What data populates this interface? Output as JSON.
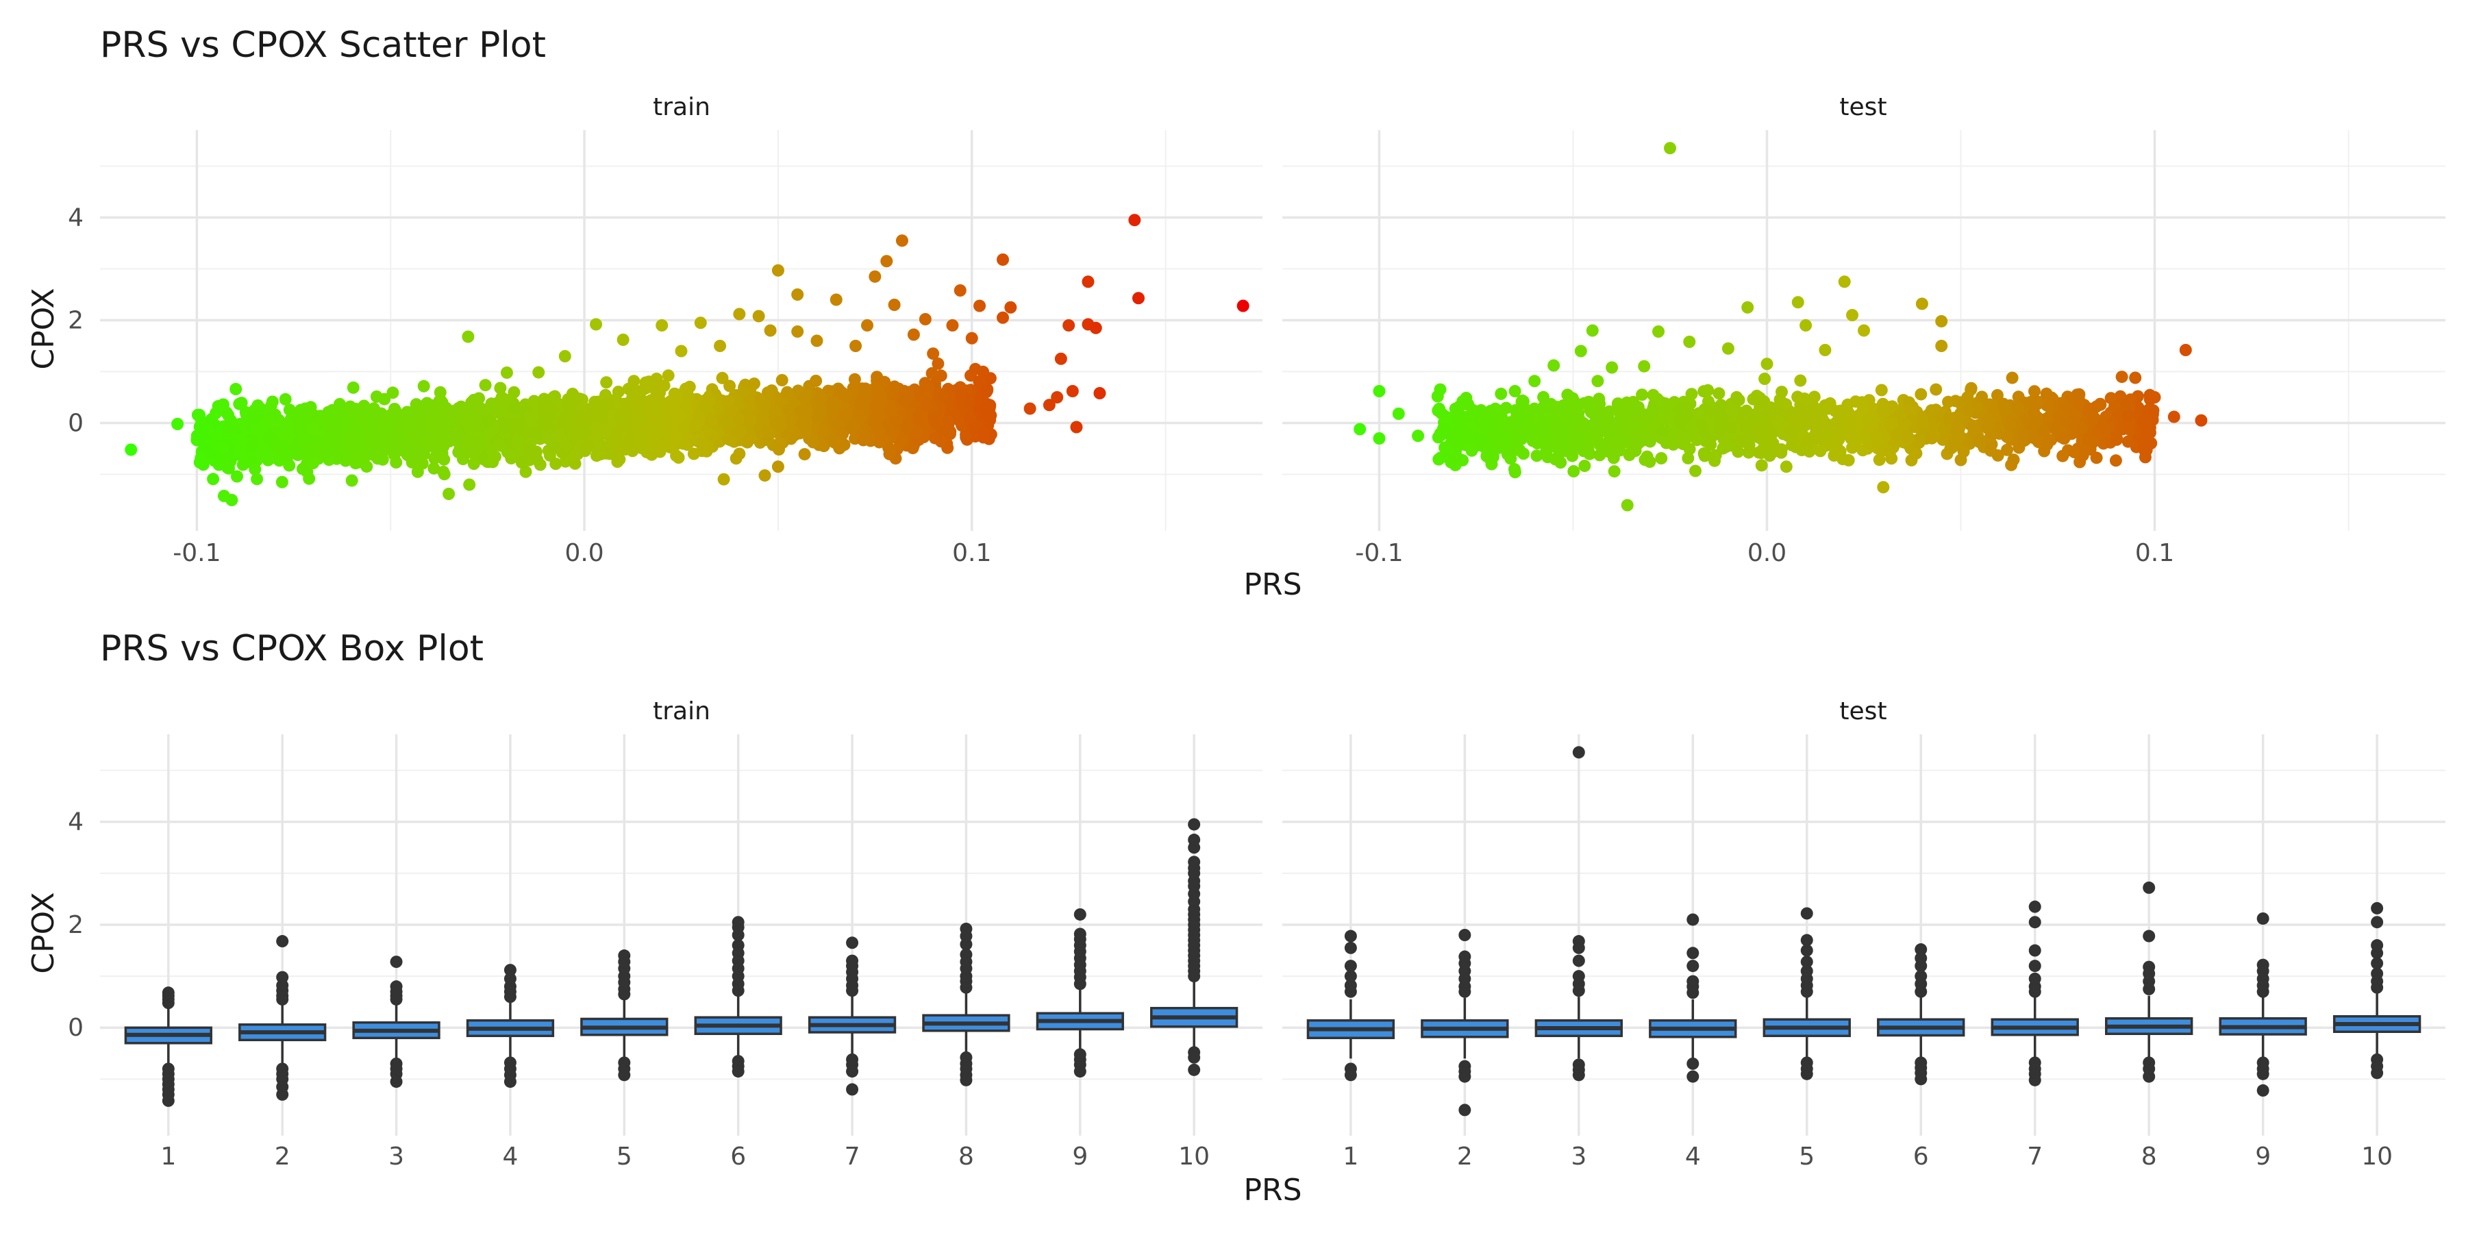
{
  "chart_data": [
    {
      "type": "scatter",
      "title": "PRS vs CPOX Scatter Plot",
      "xlabel": "PRS",
      "ylabel": "CPOX",
      "facets": [
        "train",
        "test"
      ],
      "xlim": [
        -0.125,
        0.175
      ],
      "ylim": [
        -2.1,
        5.7
      ],
      "x_ticks": [
        -0.1,
        0.0,
        0.1
      ],
      "x_tick_labels": [
        "-0.1",
        "0.0",
        "0.1"
      ],
      "y_ticks": [
        0,
        2,
        4
      ],
      "y_tick_labels": [
        "0",
        "2",
        "4"
      ],
      "grid": true,
      "legend": "none",
      "color_scale": {
        "low": "#33ff00",
        "mid": "#b8b800",
        "high": "#ee0000",
        "range": [
          -0.12,
          0.17
        ]
      },
      "series": [
        {
          "facet": "train",
          "bulk": {
            "x_range": [
              -0.1,
              0.105
            ],
            "intercept": -0.03,
            "slope": 3.0,
            "spread": 0.28,
            "n": 3000
          },
          "points": [
            [
              -0.117,
              -0.52
            ],
            [
              -0.105,
              -0.02
            ],
            [
              -0.1,
              -0.33
            ],
            [
              -0.093,
              -1.42
            ],
            [
              -0.091,
              -1.5
            ],
            [
              -0.085,
              -0.9
            ],
            [
              -0.078,
              -1.15
            ],
            [
              -0.075,
              -0.55
            ],
            [
              -0.07,
              -0.78
            ],
            [
              -0.06,
              -1.12
            ],
            [
              -0.043,
              -0.95
            ],
            [
              -0.035,
              -1.38
            ],
            [
              -0.03,
              1.68
            ],
            [
              -0.02,
              0.98
            ],
            [
              -0.005,
              1.3
            ],
            [
              0.003,
              1.92
            ],
            [
              0.01,
              1.62
            ],
            [
              0.02,
              1.9
            ],
            [
              0.025,
              1.4
            ],
            [
              0.03,
              1.95
            ],
            [
              0.035,
              1.5
            ],
            [
              0.04,
              2.12
            ],
            [
              0.04,
              -0.6
            ],
            [
              0.045,
              2.08
            ],
            [
              0.048,
              1.8
            ],
            [
              0.05,
              2.97
            ],
            [
              0.05,
              -0.85
            ],
            [
              0.055,
              1.78
            ],
            [
              0.055,
              2.5
            ],
            [
              0.06,
              1.6
            ],
            [
              0.065,
              2.4
            ],
            [
              0.07,
              1.5
            ],
            [
              0.073,
              1.9
            ],
            [
              0.075,
              2.85
            ],
            [
              0.078,
              3.15
            ],
            [
              0.08,
              2.3
            ],
            [
              0.082,
              3.55
            ],
            [
              0.085,
              1.72
            ],
            [
              0.088,
              2.02
            ],
            [
              0.09,
              1.35
            ],
            [
              0.095,
              1.9
            ],
            [
              0.097,
              2.58
            ],
            [
              0.1,
              1.65
            ],
            [
              0.102,
              2.28
            ],
            [
              0.103,
              -0.28
            ],
            [
              0.108,
              2.05
            ],
            [
              0.108,
              3.18
            ],
            [
              0.11,
              2.25
            ],
            [
              0.115,
              0.28
            ],
            [
              0.12,
              0.35
            ],
            [
              0.122,
              0.5
            ],
            [
              0.123,
              1.25
            ],
            [
              0.125,
              1.9
            ],
            [
              0.126,
              0.62
            ],
            [
              0.127,
              -0.08
            ],
            [
              0.13,
              2.75
            ],
            [
              0.13,
              1.92
            ],
            [
              0.132,
              1.85
            ],
            [
              0.133,
              0.58
            ],
            [
              0.142,
              3.95
            ],
            [
              0.143,
              2.43
            ],
            [
              0.17,
              2.28
            ]
          ]
        },
        {
          "facet": "test",
          "bulk": {
            "x_range": [
              -0.085,
              0.1
            ],
            "intercept": -0.06,
            "slope": 1.0,
            "spread": 0.3,
            "n": 1400
          },
          "points": [
            [
              -0.105,
              -0.12
            ],
            [
              -0.1,
              0.62
            ],
            [
              -0.1,
              -0.3
            ],
            [
              -0.095,
              0.18
            ],
            [
              -0.09,
              -0.25
            ],
            [
              -0.08,
              -0.45
            ],
            [
              -0.075,
              -0.3
            ],
            [
              -0.065,
              0.62
            ],
            [
              -0.055,
              1.12
            ],
            [
              -0.048,
              1.4
            ],
            [
              -0.045,
              1.8
            ],
            [
              -0.04,
              1.08
            ],
            [
              -0.036,
              -1.6
            ],
            [
              -0.028,
              1.78
            ],
            [
              -0.025,
              5.35
            ],
            [
              -0.02,
              1.58
            ],
            [
              -0.01,
              1.45
            ],
            [
              -0.005,
              2.25
            ],
            [
              0.0,
              1.15
            ],
            [
              0.005,
              -0.85
            ],
            [
              0.008,
              2.35
            ],
            [
              0.01,
              1.9
            ],
            [
              0.015,
              1.42
            ],
            [
              0.02,
              2.75
            ],
            [
              0.022,
              2.1
            ],
            [
              0.025,
              1.8
            ],
            [
              0.03,
              -1.25
            ],
            [
              0.04,
              2.32
            ],
            [
              0.045,
              1.5
            ],
            [
              0.045,
              1.98
            ],
            [
              0.05,
              -0.72
            ],
            [
              0.065,
              -0.48
            ],
            [
              0.08,
              0.55
            ],
            [
              0.085,
              0.32
            ],
            [
              0.095,
              0.88
            ],
            [
              0.1,
              0.5
            ],
            [
              0.105,
              0.12
            ],
            [
              0.108,
              1.42
            ],
            [
              0.112,
              0.05
            ]
          ]
        }
      ]
    },
    {
      "type": "box",
      "title": "PRS vs CPOX Box Plot",
      "xlabel": "PRS",
      "ylabel": "CPOX",
      "facets": [
        "train",
        "test"
      ],
      "categories": [
        "1",
        "2",
        "3",
        "4",
        "5",
        "6",
        "7",
        "8",
        "9",
        "10"
      ],
      "ylim": [
        -2.1,
        5.7
      ],
      "y_ticks": [
        0,
        2,
        4
      ],
      "y_tick_labels": [
        "0",
        "2",
        "4"
      ],
      "grid": true,
      "fill_color": "#3d8ee0",
      "series": [
        {
          "facet": "train",
          "boxes": [
            {
              "q1": -0.3,
              "median": -0.14,
              "q3": 0.0,
              "lo": -0.7,
              "hi": 0.42,
              "outliers": [
                0.48,
                0.55,
                0.62,
                0.68,
                -0.8,
                -0.9,
                -1.0,
                -1.1,
                -1.2,
                -1.3,
                -1.42
              ]
            },
            {
              "q1": -0.24,
              "median": -0.09,
              "q3": 0.06,
              "lo": -0.7,
              "hi": 0.5,
              "outliers": [
                0.55,
                0.62,
                0.72,
                0.82,
                0.98,
                1.68,
                -0.8,
                -0.9,
                -1.0,
                -1.15,
                -1.3
              ]
            },
            {
              "q1": -0.2,
              "median": -0.06,
              "q3": 0.1,
              "lo": -0.62,
              "hi": 0.5,
              "outliers": [
                0.55,
                0.62,
                0.7,
                0.8,
                1.28,
                -0.7,
                -0.8,
                -0.9,
                -1.05
              ]
            },
            {
              "q1": -0.16,
              "median": -0.02,
              "q3": 0.14,
              "lo": -0.6,
              "hi": 0.55,
              "outliers": [
                0.6,
                0.7,
                0.8,
                0.95,
                1.12,
                -0.68,
                -0.8,
                -0.92,
                -1.05
              ]
            },
            {
              "q1": -0.14,
              "median": 0.0,
              "q3": 0.17,
              "lo": -0.6,
              "hi": 0.58,
              "outliers": [
                0.65,
                0.75,
                0.88,
                1.0,
                1.15,
                1.28,
                1.4,
                -0.68,
                -0.8,
                -0.92
              ]
            },
            {
              "q1": -0.12,
              "median": 0.04,
              "q3": 0.2,
              "lo": -0.58,
              "hi": 0.65,
              "outliers": [
                0.72,
                0.85,
                1.0,
                1.15,
                1.3,
                1.45,
                1.6,
                1.8,
                1.95,
                2.05,
                -0.65,
                -0.75,
                -0.85
              ]
            },
            {
              "q1": -0.09,
              "median": 0.05,
              "q3": 0.2,
              "lo": -0.55,
              "hi": 0.65,
              "outliers": [
                0.72,
                0.82,
                0.95,
                1.08,
                1.2,
                1.3,
                1.65,
                -0.62,
                -0.72,
                -0.85,
                -1.2
              ]
            },
            {
              "q1": -0.06,
              "median": 0.08,
              "q3": 0.24,
              "lo": -0.5,
              "hi": 0.7,
              "outliers": [
                0.78,
                0.9,
                1.0,
                1.15,
                1.28,
                1.42,
                1.62,
                1.78,
                1.92,
                -0.58,
                -0.7,
                -0.8,
                -0.92,
                -1.02
              ]
            },
            {
              "q1": -0.03,
              "median": 0.13,
              "q3": 0.28,
              "lo": -0.45,
              "hi": 0.78,
              "outliers": [
                0.85,
                0.98,
                1.1,
                1.22,
                1.35,
                1.48,
                1.6,
                1.72,
                1.82,
                2.2,
                -0.52,
                -0.62,
                -0.72,
                -0.85
              ]
            },
            {
              "q1": 0.02,
              "median": 0.2,
              "q3": 0.38,
              "lo": -0.4,
              "hi": 0.9,
              "outliers": [
                1.0,
                1.1,
                1.2,
                1.3,
                1.4,
                1.5,
                1.6,
                1.7,
                1.8,
                1.9,
                2.0,
                2.1,
                2.2,
                2.3,
                2.45,
                2.6,
                2.75,
                2.85,
                3.0,
                3.1,
                3.22,
                3.5,
                3.65,
                3.95,
                -0.48,
                -0.58,
                -0.82
              ]
            }
          ]
        },
        {
          "facet": "test",
          "boxes": [
            {
              "q1": -0.2,
              "median": -0.03,
              "q3": 0.14,
              "lo": -0.6,
              "hi": 0.55,
              "outliers": [
                0.7,
                0.82,
                1.0,
                1.2,
                1.55,
                1.78,
                -0.8,
                -0.92
              ]
            },
            {
              "q1": -0.18,
              "median": -0.02,
              "q3": 0.14,
              "lo": -0.6,
              "hi": 0.58,
              "outliers": [
                0.7,
                0.8,
                0.95,
                1.1,
                1.25,
                1.38,
                1.8,
                -0.75,
                -0.85,
                -0.95,
                -1.6
              ]
            },
            {
              "q1": -0.16,
              "median": -0.01,
              "q3": 0.14,
              "lo": -0.6,
              "hi": 0.6,
              "outliers": [
                0.72,
                0.85,
                1.0,
                1.3,
                1.55,
                1.68,
                5.35,
                -0.72,
                -0.82,
                -0.92
              ]
            },
            {
              "q1": -0.18,
              "median": -0.02,
              "q3": 0.14,
              "lo": -0.6,
              "hi": 0.55,
              "outliers": [
                0.68,
                0.8,
                0.9,
                1.2,
                1.45,
                2.1,
                -0.7,
                -0.95
              ]
            },
            {
              "q1": -0.16,
              "median": 0.0,
              "q3": 0.16,
              "lo": -0.6,
              "hi": 0.6,
              "outliers": [
                0.7,
                0.82,
                0.95,
                1.1,
                1.28,
                1.5,
                1.7,
                2.22,
                -0.68,
                -0.8,
                -0.9
              ]
            },
            {
              "q1": -0.15,
              "median": 0.0,
              "q3": 0.16,
              "lo": -0.6,
              "hi": 0.6,
              "outliers": [
                0.7,
                0.85,
                1.0,
                1.2,
                1.35,
                1.52,
                -0.68,
                -0.78,
                -0.88,
                -1.0
              ]
            },
            {
              "q1": -0.14,
              "median": 0.0,
              "q3": 0.16,
              "lo": -0.6,
              "hi": 0.6,
              "outliers": [
                0.7,
                0.8,
                0.95,
                1.2,
                1.5,
                2.05,
                2.35,
                -0.68,
                -0.8,
                -0.9,
                -1.02
              ]
            },
            {
              "q1": -0.12,
              "median": 0.02,
              "q3": 0.18,
              "lo": -0.58,
              "hi": 0.62,
              "outliers": [
                0.75,
                0.9,
                1.05,
                1.18,
                1.78,
                2.72,
                -0.68,
                -0.8,
                -0.95
              ]
            },
            {
              "q1": -0.13,
              "median": 0.01,
              "q3": 0.18,
              "lo": -0.58,
              "hi": 0.6,
              "outliers": [
                0.7,
                0.82,
                0.95,
                1.1,
                1.22,
                2.12,
                -0.68,
                -0.8,
                -0.9,
                -1.22
              ]
            },
            {
              "q1": -0.08,
              "median": 0.07,
              "q3": 0.22,
              "lo": -0.55,
              "hi": 0.68,
              "outliers": [
                0.78,
                0.9,
                1.05,
                1.25,
                1.45,
                1.6,
                2.05,
                2.32,
                -0.62,
                -0.75,
                -0.88
              ]
            }
          ]
        }
      ]
    }
  ]
}
